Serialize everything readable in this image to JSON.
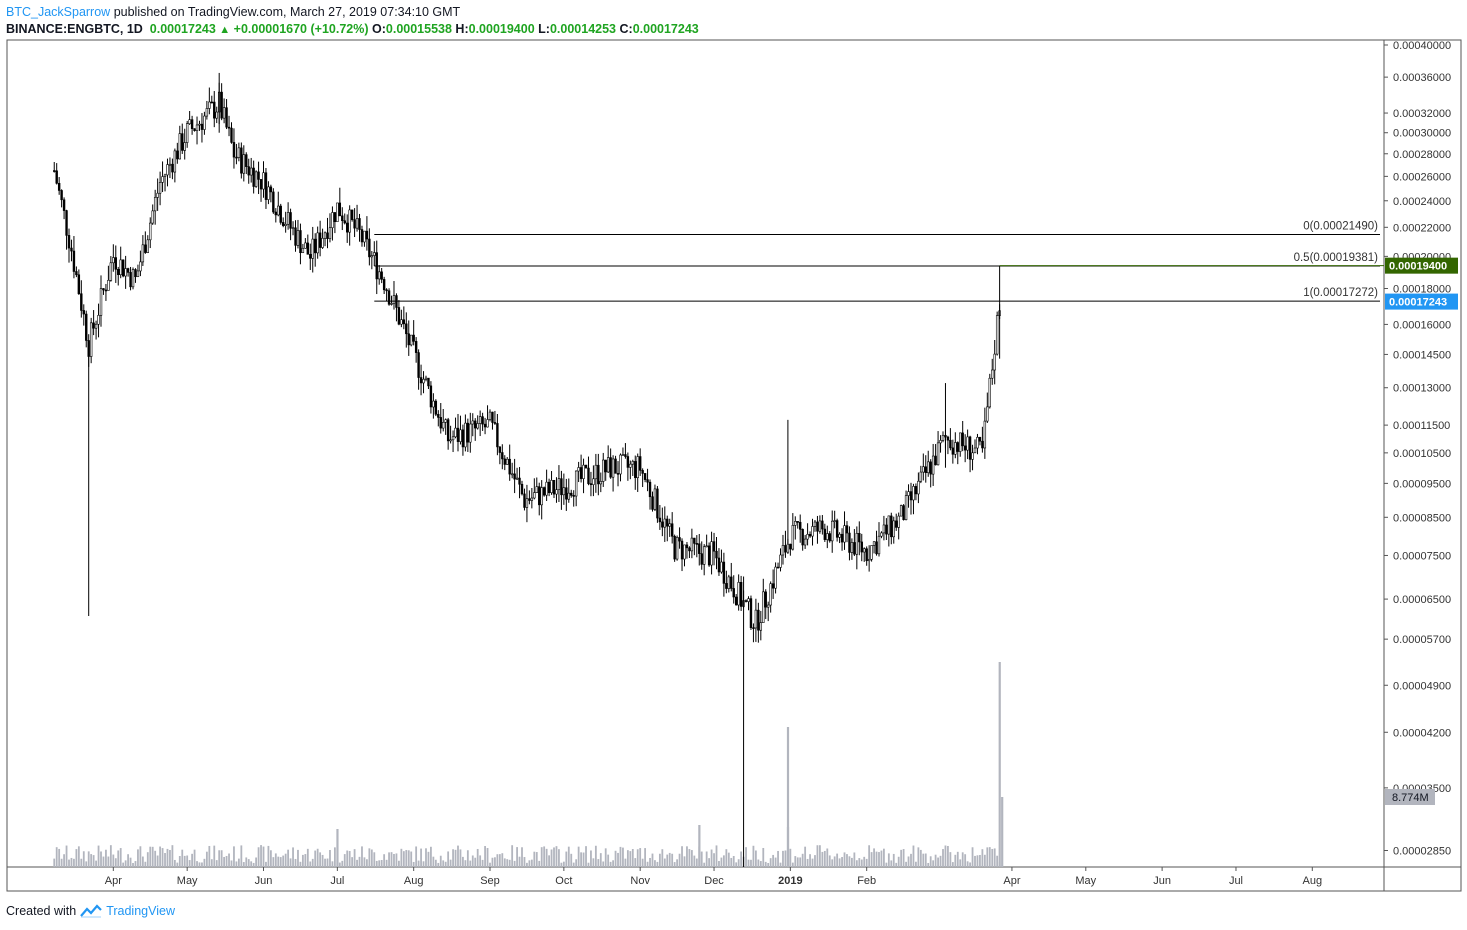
{
  "header": {
    "user": "BTC_JackSparrow",
    "published_text": "published on TradingView.com, March 27, 2019 07:34:10 GMT",
    "symbol": "BINANCE:ENGBTC, 1D",
    "last": "0.00017243",
    "change": "+0.00001670 (+10.72%)",
    "o_label": "O:",
    "o_value": "0.00015538",
    "h_label": "H:",
    "h_value": "0.00019400",
    "l_label": "L:",
    "l_value": "0.00014253",
    "c_label": "C:",
    "c_value": "0.00017243"
  },
  "footer": {
    "created_with": "Created with",
    "brand": "TradingView"
  },
  "colors": {
    "up": "#1fa421",
    "user": "#2196f3",
    "candle": "#000000",
    "volume": "#b2b5be",
    "green_tag": "#336600",
    "blue_tag": "#2196f3"
  },
  "chart_data": {
    "type": "candlestick",
    "symbol": "BINANCE:ENGBTC",
    "interval": "1D",
    "y_scale": "log",
    "y_ticks": [
      "0.00040000",
      "0.00036000",
      "0.00032000",
      "0.00030000",
      "0.00028000",
      "0.00026000",
      "0.00024000",
      "0.00022000",
      "0.00020000",
      "0.00018000",
      "0.00016000",
      "0.00014500",
      "0.00013000",
      "0.00011500",
      "0.00010500",
      "0.00009500",
      "0.00008500",
      "0.00007500",
      "0.00006500",
      "0.00005700",
      "0.00004900",
      "0.00004200",
      "0.00003500",
      "0.00002850"
    ],
    "x_ticks": [
      "Apr",
      "May",
      "Jun",
      "Jul",
      "Aug",
      "Sep",
      "Oct",
      "Nov",
      "Dec",
      "2019",
      "Feb",
      "Apr",
      "May",
      "Jun",
      "Jul",
      "Aug"
    ],
    "series_close_approx": [
      {
        "date": "2018-03-08",
        "close": 0.000265
      },
      {
        "date": "2018-03-15",
        "close": 0.000205
      },
      {
        "date": "2018-03-22",
        "close": 0.00015
      },
      {
        "date": "2018-04-01",
        "close": 0.0002
      },
      {
        "date": "2018-04-10",
        "close": 0.000185
      },
      {
        "date": "2018-04-20",
        "close": 0.000255
      },
      {
        "date": "2018-05-01",
        "close": 0.0003
      },
      {
        "date": "2018-05-14",
        "close": 0.00033
      },
      {
        "date": "2018-05-20",
        "close": 0.00028
      },
      {
        "date": "2018-06-01",
        "close": 0.000255
      },
      {
        "date": "2018-06-12",
        "close": 0.00022
      },
      {
        "date": "2018-06-20",
        "close": 0.0002
      },
      {
        "date": "2018-07-01",
        "close": 0.000235
      },
      {
        "date": "2018-07-10",
        "close": 0.000215
      },
      {
        "date": "2018-07-20",
        "close": 0.000185
      },
      {
        "date": "2018-08-01",
        "close": 0.000145
      },
      {
        "date": "2018-08-15",
        "close": 0.00011
      },
      {
        "date": "2018-09-01",
        "close": 0.000115
      },
      {
        "date": "2018-09-15",
        "close": 9e-05
      },
      {
        "date": "2018-10-01",
        "close": 9.4e-05
      },
      {
        "date": "2018-10-20",
        "close": 0.0001
      },
      {
        "date": "2018-11-01",
        "close": 0.0001
      },
      {
        "date": "2018-11-15",
        "close": 7.7e-05
      },
      {
        "date": "2018-12-01",
        "close": 7.5e-05
      },
      {
        "date": "2018-12-18",
        "close": 6e-05
      },
      {
        "date": "2019-01-01",
        "close": 8e-05
      },
      {
        "date": "2019-01-15",
        "close": 8.2e-05
      },
      {
        "date": "2019-02-01",
        "close": 7.6e-05
      },
      {
        "date": "2019-02-15",
        "close": 8.5e-05
      },
      {
        "date": "2019-03-05",
        "close": 0.00011
      },
      {
        "date": "2019-03-20",
        "close": 0.000105
      },
      {
        "date": "2019-03-27",
        "close": 0.00017243
      }
    ],
    "fib_levels": [
      {
        "label": "0(0.00021490)",
        "value": 0.0002149
      },
      {
        "label": "0.5(0.00019381)",
        "value": 0.00019381
      },
      {
        "label": "1(0.00017272)",
        "value": 0.00017272
      }
    ],
    "price_tags": [
      {
        "label": "0.00019400",
        "value": 0.000194,
        "color": "#336600"
      },
      {
        "label": "0.00017243",
        "value": 0.00017243,
        "color": "#2196f3"
      }
    ],
    "volume_tag": "8.774M"
  }
}
